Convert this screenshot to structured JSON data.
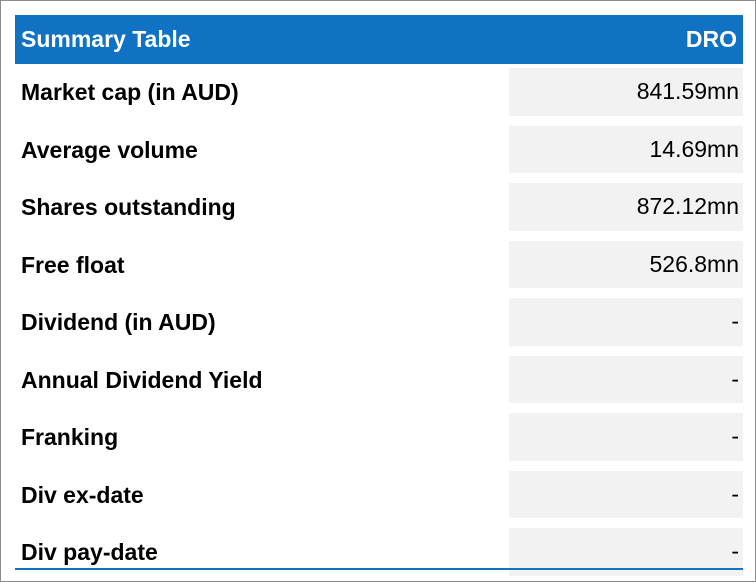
{
  "table": {
    "title": "Summary Table",
    "ticker": "DRO",
    "rows": [
      {
        "label": "Market cap (in AUD)",
        "value": "841.59mn"
      },
      {
        "label": "Average volume",
        "value": "14.69mn"
      },
      {
        "label": "Shares outstanding",
        "value": "872.12mn"
      },
      {
        "label": "Free float",
        "value": "526.8mn"
      },
      {
        "label": "Dividend (in AUD)",
        "value": "-"
      },
      {
        "label": "Annual Dividend Yield",
        "value": "-"
      },
      {
        "label": "Franking",
        "value": "-"
      },
      {
        "label": "Div ex-date",
        "value": "-"
      },
      {
        "label": "Div pay-date",
        "value": "-"
      }
    ]
  },
  "colors": {
    "header_bg": "#0f72c2",
    "header_text": "#ffffff",
    "value_cell_bg": "#f2f2f2"
  }
}
